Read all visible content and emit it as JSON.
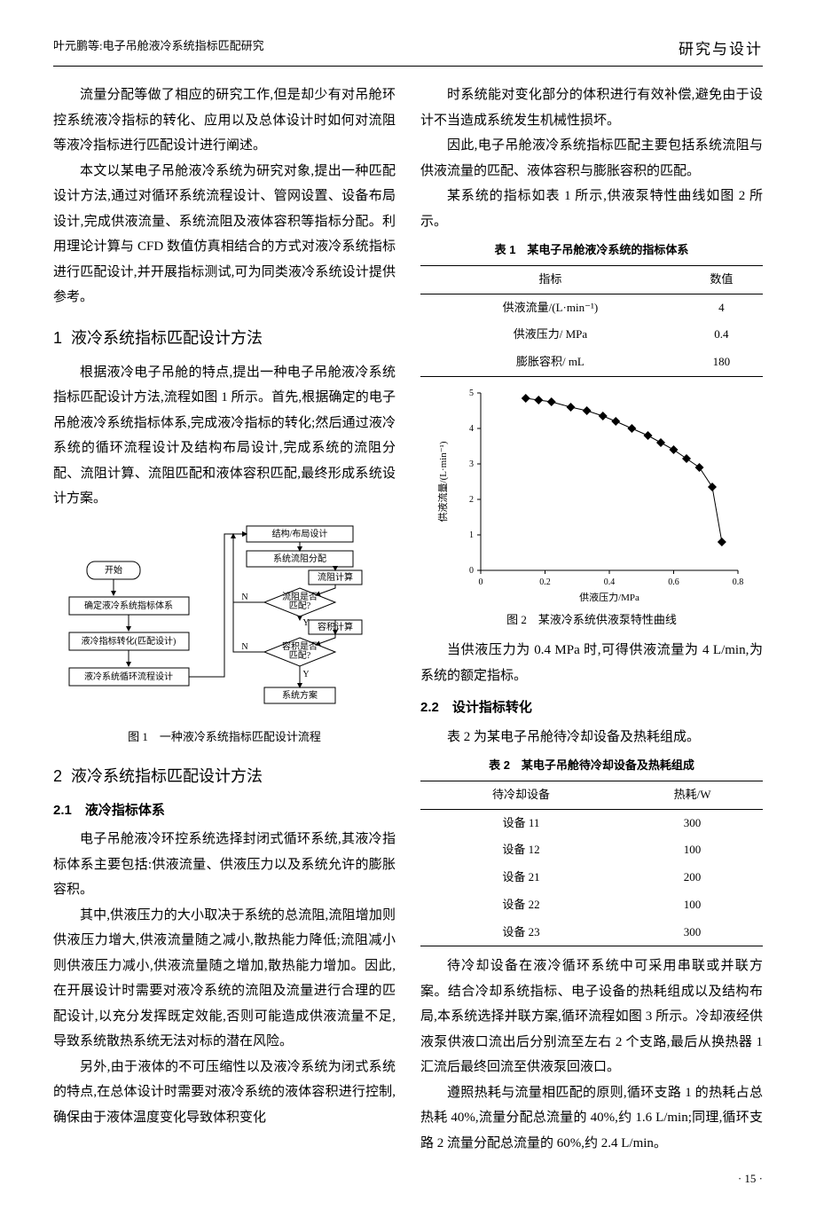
{
  "header": {
    "left": "叶元鹏等:电子吊舱液冷系统指标匹配研究",
    "right": "研究与设计"
  },
  "left_col": {
    "p1": "流量分配等做了相应的研究工作,但是却少有对吊舱环控系统液冷指标的转化、应用以及总体设计时如何对流阻等液冷指标进行匹配设计进行阐述。",
    "p2": "本文以某电子吊舱液冷系统为研究对象,提出一种匹配设计方法,通过对循环系统流程设计、管网设置、设备布局设计,完成供液流量、系统流阻及液体容积等指标分配。利用理论计算与 CFD 数值仿真相结合的方式对液冷系统指标进行匹配设计,并开展指标测试,可为同类液冷系统设计提供参考。",
    "sec1": {
      "num": "1",
      "title": "液冷系统指标匹配设计方法"
    },
    "p3": "根据液冷电子吊舱的特点,提出一种电子吊舱液冷系统指标匹配设计方法,流程如图 1 所示。首先,根据确定的电子吊舱液冷系统指标体系,完成液冷指标的转化;然后通过液冷系统的循环流程设计及结构布局设计,完成系统的流阻分配、流阻计算、流阻匹配和液体容积匹配,最终形成系统设计方案。",
    "fig1": {
      "caption": "图 1　一种液冷系统指标匹配设计流程",
      "nodes": {
        "start": "开始",
        "n1": "确定液冷系统指标体系",
        "n2": "液冷指标转化(匹配设计)",
        "n3": "液冷系统循环流程设计",
        "r1": "结构/布局设计",
        "r2": "系统流阻分配",
        "r3": "流阻计算",
        "d1": "流阻是否\n匹配?",
        "r4": "容积计算",
        "d2": "容积是否\n匹配?",
        "end": "系统方案"
      },
      "labels": {
        "yes": "Y",
        "no": "N"
      },
      "box_stroke": "#000000",
      "box_fill": "#ffffff",
      "font_size": 10
    },
    "sec2": {
      "num": "2",
      "title": "液冷系统指标匹配设计方法"
    },
    "sub21": {
      "num": "2.1",
      "title": "液冷指标体系"
    },
    "p4": "电子吊舱液冷环控系统选择封闭式循环系统,其液冷指标体系主要包括:供液流量、供液压力以及系统允许的膨胀容积。",
    "p5": "其中,供液压力的大小取决于系统的总流阻,流阻增加则供液压力增大,供液流量随之减小,散热能力降低;流阻减小则供液压力减小,供液流量随之增加,散热能力增加。因此,在开展设计时需要对液冷系统的流阻及流量进行合理的匹配设计,以充分发挥既定效能,否则可能造成供液流量不足,导致系统散热系统无法对标的潜在风险。",
    "p6": "另外,由于液体的不可压缩性以及液冷系统为闭式系统的特点,在总体设计时需要对液冷系统的液体容积进行控制,确保由于液体温度变化导致体积变化"
  },
  "right_col": {
    "p1": "时系统能对变化部分的体积进行有效补偿,避免由于设计不当造成系统发生机械性损坏。",
    "p2": "因此,电子吊舱液冷系统指标匹配主要包括系统流阻与供液流量的匹配、液体容积与膨胀容积的匹配。",
    "p3": "某系统的指标如表 1 所示,供液泵特性曲线如图 2 所示。",
    "table1": {
      "caption": "表 1　某电子吊舱液冷系统的指标体系",
      "col_labels": [
        "指标",
        "数值"
      ],
      "rows": [
        [
          "供液流量/(L·min⁻¹)",
          "4"
        ],
        [
          "供液压力/ MPa",
          "0.4"
        ],
        [
          "膨胀容积/ mL",
          "180"
        ]
      ]
    },
    "fig2": {
      "caption": "图 2　某液冷系统供液泵特性曲线",
      "type": "line-scatter",
      "xlabel": "供液压力/MPa",
      "ylabel": "供液流量/(L·min⁻¹)",
      "xlim": [
        0,
        0.8
      ],
      "ylim": [
        0,
        5
      ],
      "xticks": [
        0,
        0.2,
        0.4,
        0.6,
        0.8
      ],
      "yticks": [
        0,
        1,
        2,
        3,
        4,
        5
      ],
      "points_x": [
        0.14,
        0.18,
        0.22,
        0.28,
        0.33,
        0.38,
        0.42,
        0.47,
        0.52,
        0.56,
        0.6,
        0.64,
        0.68,
        0.72,
        0.75
      ],
      "points_y": [
        4.85,
        4.8,
        4.75,
        4.6,
        4.5,
        4.35,
        4.2,
        4.0,
        3.8,
        3.6,
        3.4,
        3.15,
        2.9,
        2.35,
        0.8
      ],
      "line_color": "#000000",
      "marker": "diamond",
      "marker_size": 5,
      "axis_color": "#000000",
      "background": "#ffffff",
      "label_fontsize": 11,
      "tick_fontsize": 10
    },
    "p4": "当供液压力为 0.4 MPa 时,可得供液流量为 4 L/min,为系统的额定指标。",
    "sub22": {
      "num": "2.2",
      "title": "设计指标转化"
    },
    "p5": "表 2 为某电子吊舱待冷却设备及热耗组成。",
    "table2": {
      "caption": "表 2　某电子吊舱待冷却设备及热耗组成",
      "col_labels": [
        "待冷却设备",
        "热耗/W"
      ],
      "rows": [
        [
          "设备 11",
          "300"
        ],
        [
          "设备 12",
          "100"
        ],
        [
          "设备 21",
          "200"
        ],
        [
          "设备 22",
          "100"
        ],
        [
          "设备 23",
          "300"
        ]
      ]
    },
    "p6": "待冷却设备在液冷循环系统中可采用串联或并联方案。结合冷却系统指标、电子设备的热耗组成以及结构布局,本系统选择并联方案,循环流程如图 3 所示。冷却液经供液泵供液口流出后分别流至左右 2 个支路,最后从换热器 1 汇流后最终回流至供液泵回液口。",
    "p7": "遵照热耗与流量相匹配的原则,循环支路 1 的热耗占总热耗 40%,流量分配总流量的 40%,约 1.6 L/min;同理,循环支路 2 流量分配总流量的 60%,约 2.4 L/min。"
  },
  "page_num": "· 15 ·"
}
